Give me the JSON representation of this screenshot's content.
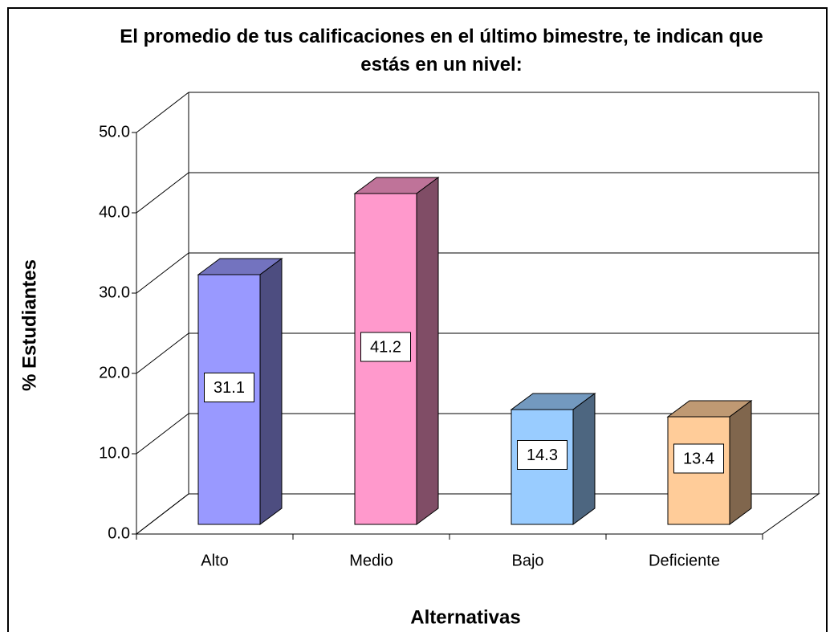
{
  "chart_data": {
    "type": "bar3d",
    "title": "El promedio de tus calificaciones en el último bimestre, te indican que estás en un nivel:",
    "xlabel": "Alternativas",
    "ylabel": "% Estudiantes",
    "categories": [
      "Alto",
      "Medio",
      "Bajo",
      "Deficiente"
    ],
    "values": [
      31.1,
      41.2,
      14.3,
      13.4
    ],
    "colors": [
      "#9999ff",
      "#ff99cc",
      "#99ccff",
      "#ffcc99"
    ],
    "ylim": [
      0,
      50
    ],
    "yticks": [
      {
        "value": 0,
        "label": "0.0"
      },
      {
        "value": 10,
        "label": "10.0"
      },
      {
        "value": 20,
        "label": "20.0"
      },
      {
        "value": 30,
        "label": "30.0"
      },
      {
        "value": 40,
        "label": "40.0"
      },
      {
        "value": 50,
        "label": "50.0"
      }
    ],
    "grid": true
  }
}
